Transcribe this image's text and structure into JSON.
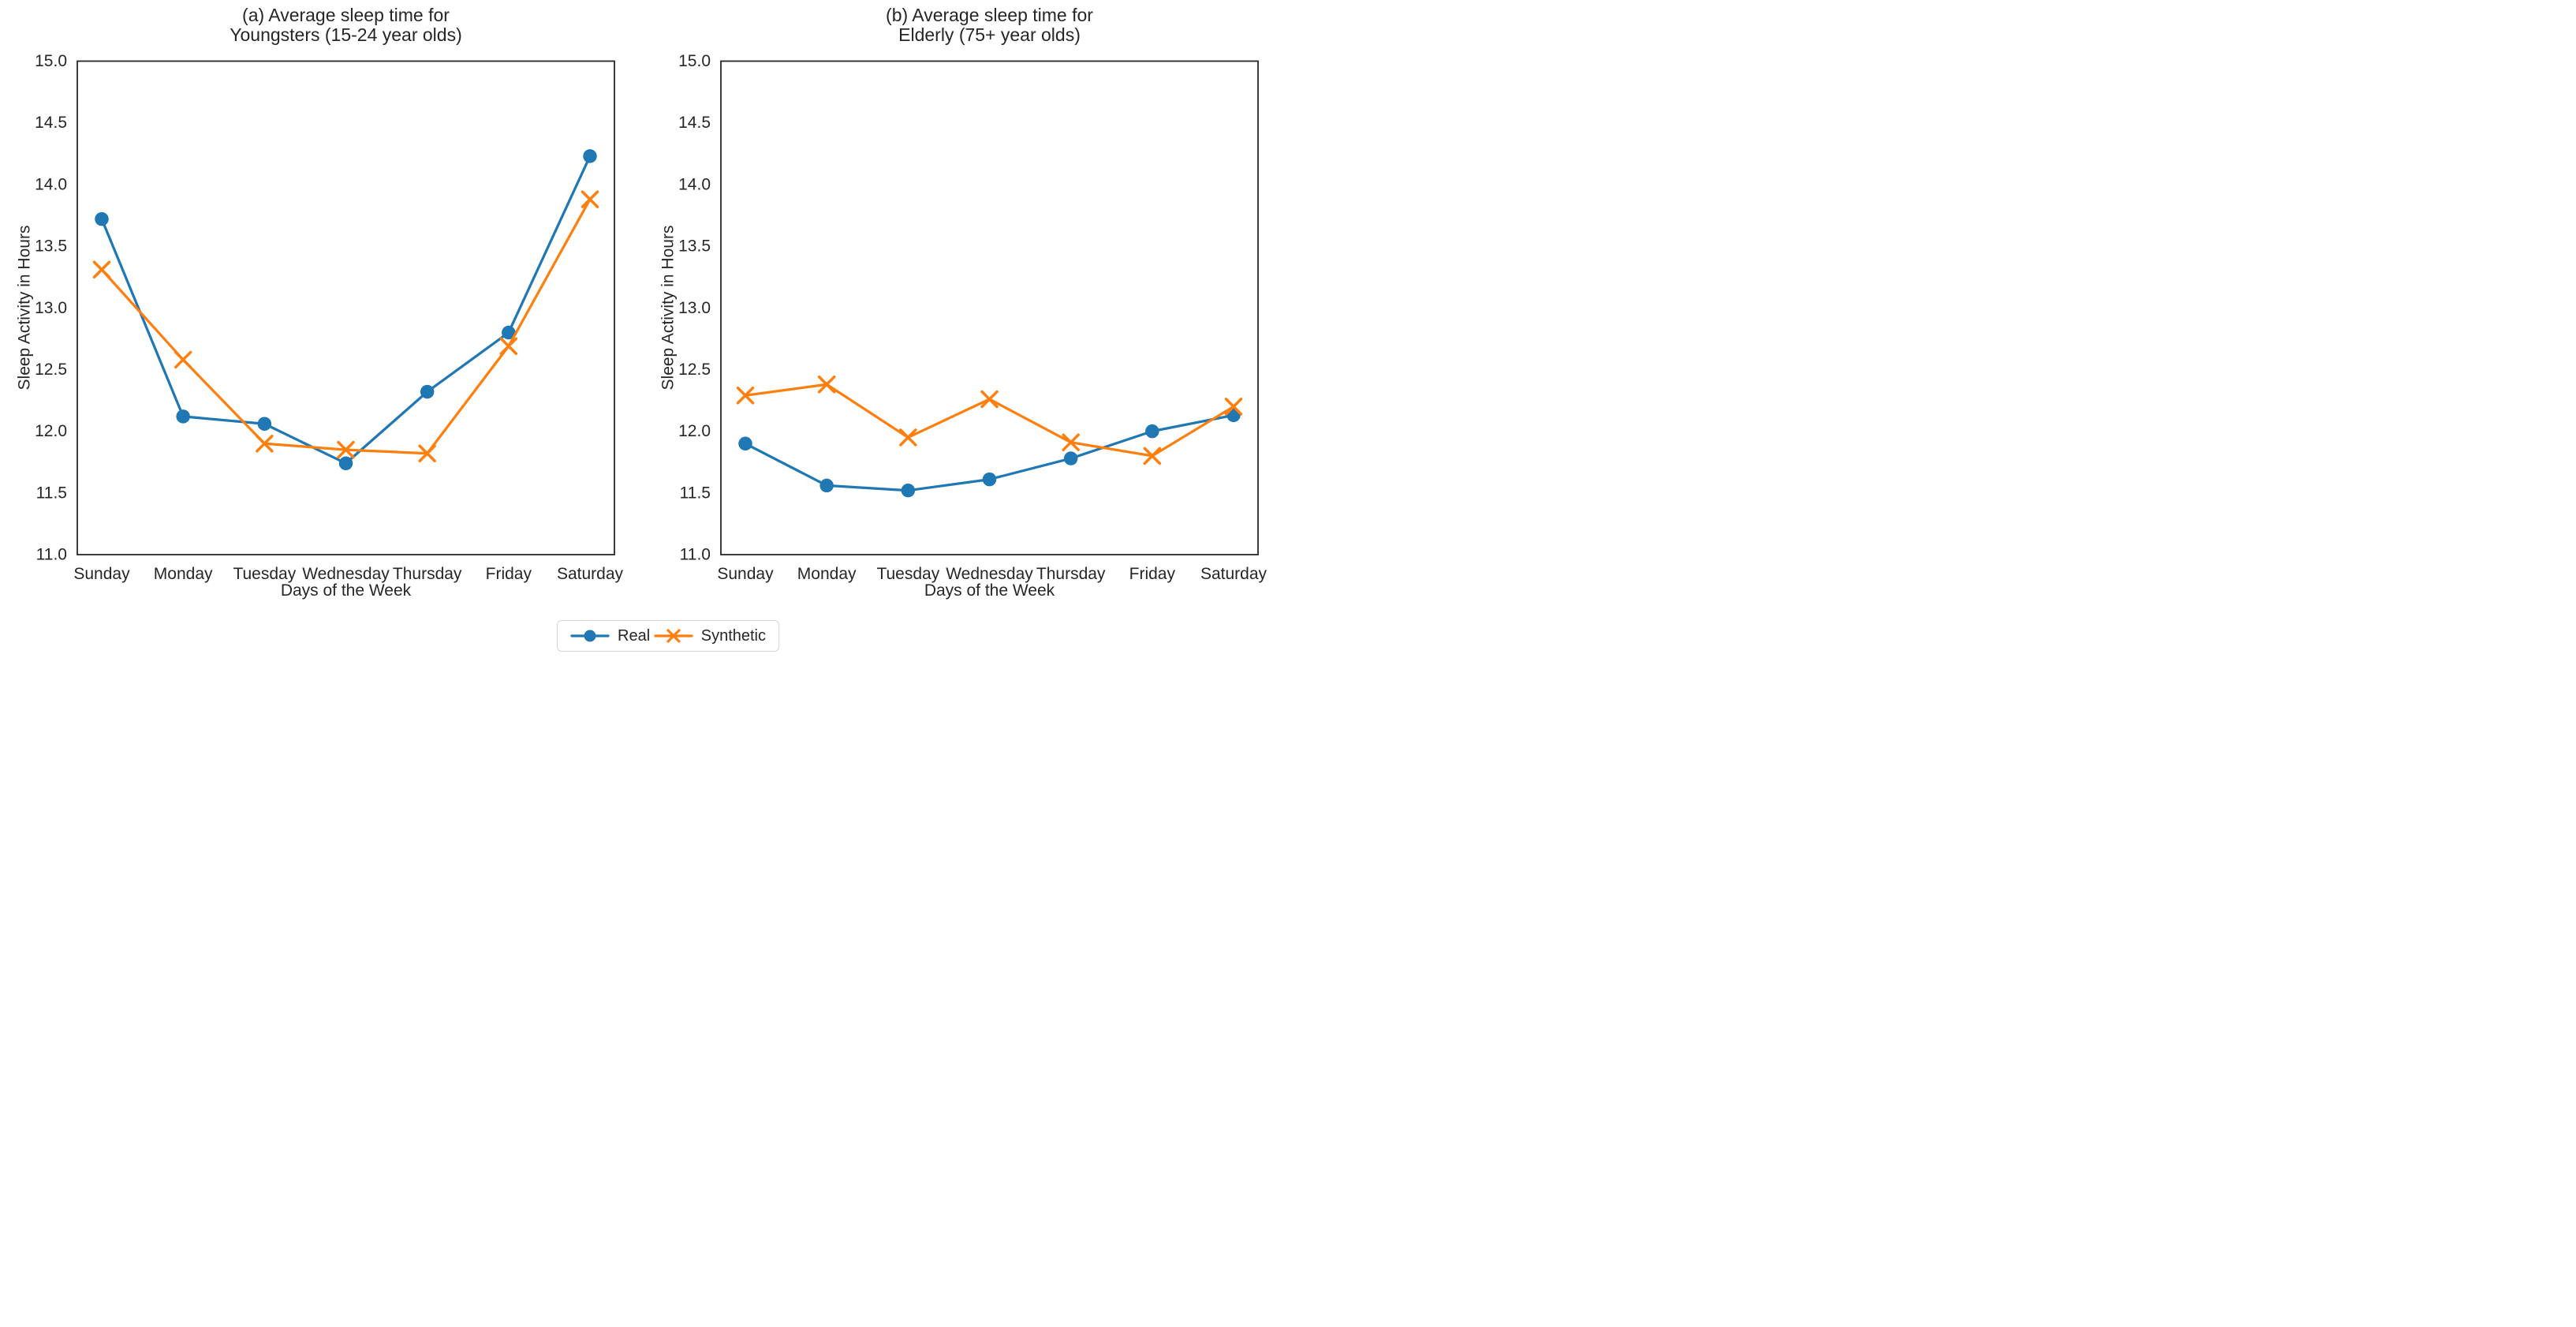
{
  "figure": {
    "background_color": "#ffffff",
    "axis_color": "#262626",
    "text_color": "#262626"
  },
  "legend": {
    "position": "bottom-center",
    "items": [
      {
        "label": "Real",
        "color": "#1f77b4",
        "marker": "circle"
      },
      {
        "label": "Synthetic",
        "color": "#ff7f0e",
        "marker": "x"
      }
    ]
  },
  "chart_data": [
    {
      "type": "line",
      "title": "(a) Average sleep time for Youngsters (15-24 year olds)",
      "title_lines": [
        "(a) Average sleep time for",
        "Youngsters (15-24 year olds)"
      ],
      "xlabel": "Days of the Week",
      "ylabel": "Sleep Activity in Hours",
      "categories": [
        "Sunday",
        "Monday",
        "Tuesday",
        "Wednesday",
        "Thursday",
        "Friday",
        "Saturday"
      ],
      "ylim": [
        11.0,
        15.0
      ],
      "yticks": [
        15.0,
        14.5,
        14.0,
        13.5,
        13.0,
        12.5,
        12.0,
        11.5,
        11.0
      ],
      "grid": false,
      "legend_position": "figure-bottom-center",
      "series": [
        {
          "name": "Real",
          "color": "#1f77b4",
          "marker": "circle",
          "values": [
            13.72,
            12.12,
            12.06,
            11.74,
            12.32,
            12.8,
            14.23
          ]
        },
        {
          "name": "Synthetic",
          "color": "#ff7f0e",
          "marker": "x",
          "values": [
            13.31,
            12.58,
            11.9,
            11.85,
            11.82,
            12.69,
            13.88
          ]
        }
      ]
    },
    {
      "type": "line",
      "title": "(b) Average sleep time for Elderly (75+ year olds)",
      "title_lines": [
        "(b) Average sleep time for",
        "Elderly (75+ year olds)"
      ],
      "xlabel": "Days of the Week",
      "ylabel": "Sleep Activity in Hours",
      "categories": [
        "Sunday",
        "Monday",
        "Tuesday",
        "Wednesday",
        "Thursday",
        "Friday",
        "Saturday"
      ],
      "ylim": [
        11.0,
        15.0
      ],
      "yticks": [
        15.0,
        14.5,
        14.0,
        13.5,
        13.0,
        12.5,
        12.0,
        11.5,
        11.0
      ],
      "grid": false,
      "legend_position": "figure-bottom-center",
      "series": [
        {
          "name": "Real",
          "color": "#1f77b4",
          "marker": "circle",
          "values": [
            11.9,
            11.56,
            11.52,
            11.61,
            11.78,
            12.0,
            12.13
          ]
        },
        {
          "name": "Synthetic",
          "color": "#ff7f0e",
          "marker": "x",
          "values": [
            12.29,
            12.38,
            11.95,
            12.26,
            11.91,
            11.8,
            12.2
          ]
        }
      ]
    }
  ]
}
